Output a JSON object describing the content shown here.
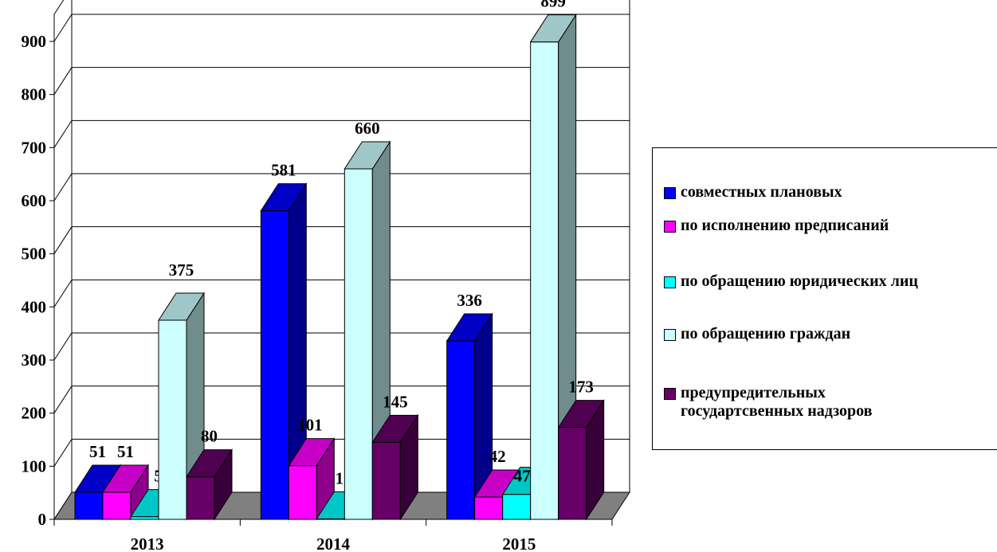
{
  "chart_data": {
    "type": "bar",
    "categories": [
      "2013",
      "2014",
      "2015"
    ],
    "series": [
      {
        "name": "совместных плановых",
        "values": [
          51,
          581,
          336
        ],
        "color": "#0000ff"
      },
      {
        "name": "по исполнению предписаний",
        "values": [
          51,
          101,
          42
        ],
        "color": "#ff00ff"
      },
      {
        "name": "по обращению юридических лиц",
        "values": [
          5,
          1,
          47
        ],
        "color": "#00ffff"
      },
      {
        "name": "по обращению граждан",
        "values": [
          375,
          660,
          899
        ],
        "color": "#ccffff"
      },
      {
        "name": "предупредительных государтсвенных надзоров",
        "values": [
          80,
          145,
          173
        ],
        "color": "#660066"
      }
    ],
    "ylim": [
      0,
      900
    ],
    "yticks": [
      "0",
      "100",
      "200",
      "300",
      "400",
      "500",
      "600",
      "700",
      "800",
      "900"
    ],
    "grid": true,
    "legend_position": "right",
    "style": "3d"
  }
}
